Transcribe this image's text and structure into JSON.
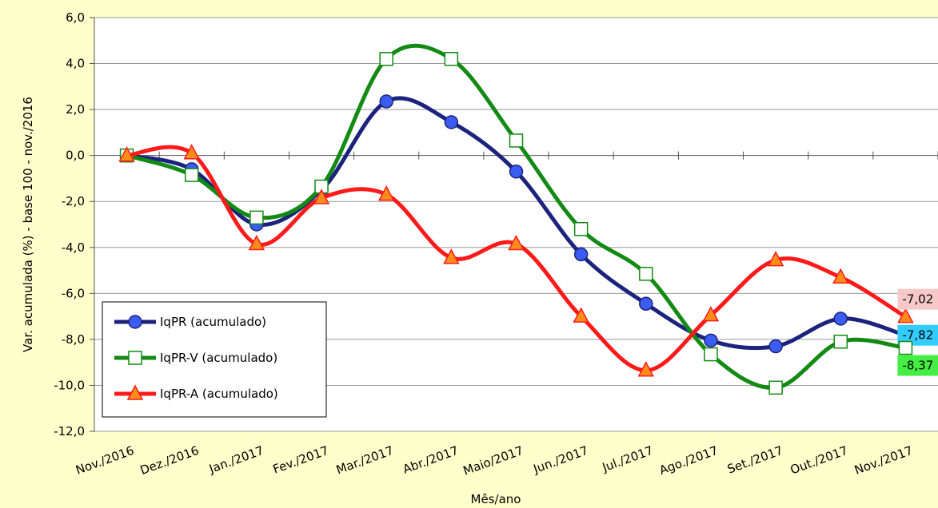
{
  "chart_data": {
    "type": "line",
    "x_label": "Mês/ano",
    "y_label": "Var. acumulada (%) - base 100 - nov./2016",
    "categories": [
      "Nov./2016",
      "Dez./2016",
      "Jan./2017",
      "Fev./2017",
      "Mar./2017",
      "Abr./2017",
      "Maio/2017",
      "Jun./2017",
      "Jul./2017",
      "Ago./2017",
      "Set./2017",
      "Out./2017",
      "Nov./2017"
    ],
    "ylim": [
      -12,
      6
    ],
    "yticks": [
      {
        "value": 6,
        "label": "6,0"
      },
      {
        "value": 4,
        "label": "4,0"
      },
      {
        "value": 2,
        "label": "2,0"
      },
      {
        "value": 0,
        "label": "0,0"
      },
      {
        "value": -2,
        "label": "-2,0"
      },
      {
        "value": -4,
        "label": "-4,0"
      },
      {
        "value": -6,
        "label": "-6,0"
      },
      {
        "value": -8,
        "label": "-8,0"
      },
      {
        "value": -10,
        "label": "-10,0"
      },
      {
        "value": -12,
        "label": "-12,0"
      }
    ],
    "grid": true,
    "smooth": true,
    "series": [
      {
        "name": "IqPR (acumulado)",
        "color": "#1c237e",
        "marker": "circle",
        "marker_color": "#3a5cf0",
        "label_color": "#33ccff",
        "values": [
          0,
          -0.6,
          -3.0,
          -1.5,
          2.35,
          1.45,
          -0.7,
          -4.3,
          -6.45,
          -8.05,
          -8.3,
          -7.1,
          -7.82
        ],
        "value_labels": [
          null,
          null,
          null,
          null,
          null,
          null,
          null,
          null,
          null,
          null,
          null,
          null,
          "-7,82"
        ]
      },
      {
        "name": "IqPR-V  (acumulado)",
        "color": "#138a13",
        "marker": "square",
        "marker_color": "#ffffff",
        "label_color": "#44ee44",
        "values": [
          0,
          -0.85,
          -2.7,
          -1.35,
          4.2,
          4.2,
          0.65,
          -3.2,
          -5.15,
          -8.65,
          -10.1,
          -8.1,
          -8.37
        ],
        "value_labels": [
          null,
          null,
          null,
          null,
          null,
          null,
          null,
          null,
          null,
          null,
          null,
          null,
          "-8,37"
        ]
      },
      {
        "name": "IqPR-A  (acumulado)",
        "color": "#ff1a1a",
        "marker": "triangle",
        "marker_color": "#ff8c1a",
        "label_color": "#f6c8c8",
        "values": [
          0,
          0.1,
          -3.85,
          -1.85,
          -1.7,
          -4.45,
          -3.85,
          -7.0,
          -9.35,
          -6.95,
          -4.55,
          -5.3,
          -7.02
        ],
        "value_labels": [
          null,
          null,
          null,
          null,
          null,
          null,
          null,
          null,
          null,
          null,
          null,
          null,
          "-7,02"
        ]
      }
    ]
  }
}
